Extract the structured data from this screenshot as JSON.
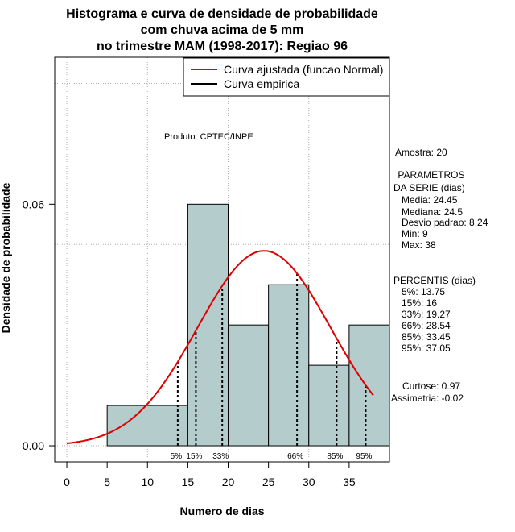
{
  "chart_data": {
    "type": "bar",
    "title_lines": [
      "Histograma e curva de densidade de probabilidade",
      "com chuva acima de 5 mm",
      "no trimestre MAM (1998-2017): Regiao 96"
    ],
    "xlabel": "Numero de dias",
    "ylabel": "Densidade de probabilidade",
    "xlim": [
      -1.5,
      40
    ],
    "ylim": [
      -0.004,
      0.0965
    ],
    "x_ticks": [
      0,
      5,
      10,
      15,
      20,
      25,
      30,
      35
    ],
    "y_ticks": [
      0.0,
      0.06
    ],
    "y_tick_labels": [
      "0.00",
      "0.06"
    ],
    "grid_x": [
      0,
      10,
      20,
      30
    ],
    "grid_y": [
      0.0,
      0.05,
      0.09
    ],
    "histogram": [
      {
        "x0": 5,
        "x1": 15,
        "density": 0.01
      },
      {
        "x0": 15,
        "x1": 20,
        "density": 0.06
      },
      {
        "x0": 20,
        "x1": 25,
        "density": 0.03
      },
      {
        "x0": 25,
        "x1": 30,
        "density": 0.04
      },
      {
        "x0": 30,
        "x1": 35,
        "density": 0.02
      },
      {
        "x0": 35,
        "x1": 40,
        "density": 0.03
      }
    ],
    "bar_color": "#b4cccc",
    "normal_curve": {
      "mean": 24.45,
      "sd": 8.24,
      "x_from": 0,
      "x_to": 38,
      "color": "#e00000"
    },
    "legend": [
      {
        "label": "Curva ajustada (funcao Normal)",
        "color": "#e00000"
      },
      {
        "label": "Curva empirica",
        "color": "#000000"
      }
    ],
    "credit": "Produto: CPTEC/INPE",
    "percentile_marks": [
      {
        "label": "5%",
        "x": 13.75
      },
      {
        "label": "15%",
        "x": 16
      },
      {
        "label": "33%",
        "x": 19.27
      },
      {
        "label": "66%",
        "x": 28.54
      },
      {
        "label": "85%",
        "x": 33.45
      },
      {
        "label": "95%",
        "x": 37.05
      }
    ],
    "stats_lines": [
      "Amostra: 20",
      " PARAMETROS",
      "DA SERIE (dias)",
      "   Media: 24.45",
      "   Mediana: 24.5",
      "   Desvio padrao: 8.24",
      "   Min: 9",
      "   Max: 38",
      "PERCENTIS (dias)",
      "   5%: 13.75",
      "   15%: 16",
      "   33%: 19.27",
      "   66%: 28.54",
      "   85%: 33.45",
      "   95%: 37.05",
      "Curtose: 0.97",
      "Assimetria: -0.02"
    ]
  }
}
